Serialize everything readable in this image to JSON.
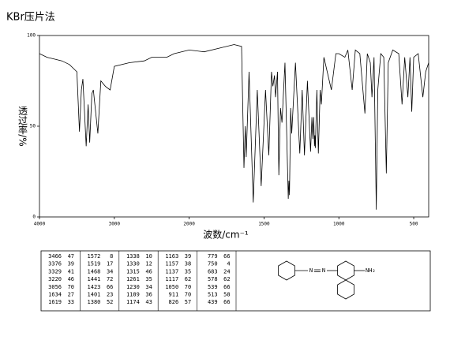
{
  "chart_data": {
    "type": "line",
    "title": "KBr压片法",
    "xlabel": "波数/cm⁻¹",
    "ylabel": "透过率/%",
    "xlim": [
      4000,
      400
    ],
    "x_scale_break": 2000,
    "xticks": [
      4000,
      3000,
      2000,
      1500,
      1000,
      500
    ],
    "ylim": [
      0,
      100
    ],
    "yticks": [
      0,
      50,
      100
    ],
    "color": "#000000",
    "x": [
      4000,
      3900,
      3800,
      3700,
      3600,
      3500,
      3466,
      3440,
      3420,
      3376,
      3350,
      3329,
      3300,
      3280,
      3220,
      3180,
      3120,
      3056,
      3000,
      2800,
      2600,
      2500,
      2300,
      2200,
      2000,
      1900,
      1800,
      1700,
      1650,
      1634,
      1625,
      1619,
      1600,
      1572,
      1545,
      1519,
      1490,
      1468,
      1450,
      1441,
      1430,
      1423,
      1410,
      1401,
      1390,
      1380,
      1360,
      1338,
      1334,
      1330,
      1322,
      1315,
      1290,
      1261,
      1245,
      1230,
      1210,
      1189,
      1180,
      1174,
      1168,
      1163,
      1160,
      1157,
      1147,
      1137,
      1125,
      1117,
      1100,
      1050,
      1020,
      1000,
      960,
      940,
      911,
      890,
      860,
      826,
      810,
      790,
      779,
      765,
      750,
      740,
      720,
      700,
      683,
      670,
      640,
      600,
      578,
      560,
      539,
      525,
      513,
      500,
      470,
      439,
      420,
      400
    ],
    "values": [
      90,
      88,
      87,
      86,
      84,
      80,
      47,
      70,
      76,
      39,
      62,
      41,
      68,
      70,
      46,
      75,
      72,
      70,
      83,
      85,
      86,
      88,
      88,
      90,
      92,
      91,
      93,
      95,
      94,
      27,
      50,
      33,
      80,
      8,
      70,
      17,
      70,
      34,
      80,
      72,
      78,
      66,
      80,
      23,
      60,
      52,
      85,
      10,
      20,
      12,
      60,
      46,
      85,
      35,
      70,
      34,
      75,
      36,
      55,
      43,
      55,
      39,
      45,
      38,
      70,
      35,
      70,
      62,
      88,
      70,
      90,
      90,
      88,
      92,
      70,
      92,
      90,
      57,
      90,
      85,
      66,
      88,
      4,
      70,
      90,
      88,
      24,
      85,
      92,
      90,
      62,
      88,
      66,
      88,
      58,
      88,
      90,
      66,
      80,
      85
    ]
  },
  "peak_table": [
    [
      [
        3466,
        47
      ],
      [
        3376,
        39
      ],
      [
        3329,
        41
      ],
      [
        3220,
        46
      ],
      [
        3056,
        70
      ],
      [
        1634,
        27
      ],
      [
        1619,
        33
      ]
    ],
    [
      [
        1572,
        8
      ],
      [
        1519,
        17
      ],
      [
        1468,
        34
      ],
      [
        1441,
        72
      ],
      [
        1423,
        66
      ],
      [
        1401,
        23
      ],
      [
        1380,
        52
      ]
    ],
    [
      [
        1338,
        10
      ],
      [
        1330,
        12
      ],
      [
        1315,
        46
      ],
      [
        1261,
        35
      ],
      [
        1230,
        34
      ],
      [
        1189,
        36
      ],
      [
        1174,
        43
      ]
    ],
    [
      [
        1163,
        39
      ],
      [
        1157,
        38
      ],
      [
        1137,
        35
      ],
      [
        1117,
        62
      ],
      [
        1050,
        70
      ],
      [
        911,
        70
      ],
      [
        826,
        57
      ]
    ],
    [
      [
        779,
        66
      ],
      [
        750,
        4
      ],
      [
        683,
        24
      ],
      [
        578,
        62
      ],
      [
        539,
        66
      ],
      [
        513,
        58
      ],
      [
        439,
        66
      ]
    ]
  ],
  "structure": {
    "azo": [
      "N",
      "N"
    ],
    "substituent": "NH₂"
  }
}
